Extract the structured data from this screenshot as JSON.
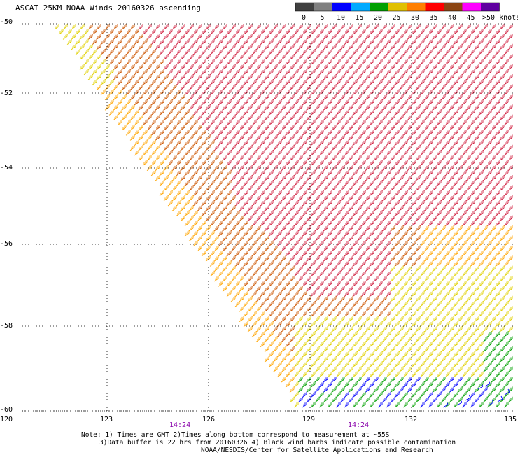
{
  "title": "ASCAT 25KM NOAA Winds 20160326 ascending",
  "legend": {
    "ticks": [
      "0",
      "5",
      "10",
      "15",
      "20",
      "25",
      "30",
      "35",
      "40",
      "45",
      ">50 knots"
    ],
    "colors": [
      "#404040",
      "#808080",
      "#0000ff",
      "#00aaff",
      "#00a000",
      "#e0c000",
      "#ff7f00",
      "#ff0000",
      "#8b4513",
      "#ff00ff",
      "#6000a0"
    ]
  },
  "map": {
    "lat_labels": [
      "-50",
      "-52",
      "-54",
      "-56",
      "-58",
      "-60"
    ],
    "lon_labels": [
      "120",
      "123",
      "126",
      "129",
      "132",
      "135"
    ],
    "time_labels": [
      "14:24",
      "14:24"
    ],
    "barb_colors": {
      "calm": "#808080",
      "light": "#0000ff",
      "moderate": "#00a000",
      "fresh": "#e0d000",
      "strong": "#ffa500",
      "gale": "#cc5500",
      "storm": "#d02040"
    }
  },
  "notes": [
    "Note: 1) Times are GMT 2)Times along bottom correspond to measurement at ~55S",
    "3)Data buffer is 22 hrs from 20160326 4) Black wind barbs indicate possible contamination",
    "NOAA/NESDIS/Center for Satellite Applications and Research"
  ]
}
